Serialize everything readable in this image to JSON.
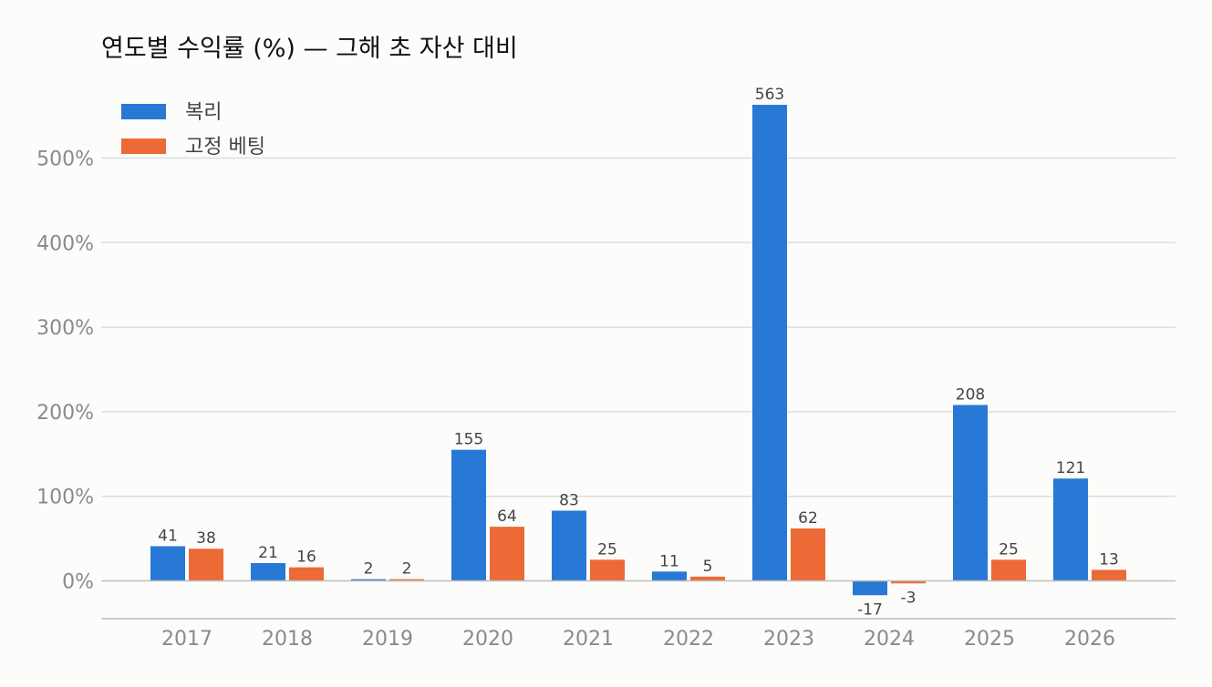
{
  "chart_data": {
    "type": "bar",
    "title": "연도별 수익률 (%) — 그해 초 자산 대비",
    "xlabel": "",
    "ylabel": "",
    "categories": [
      "2017",
      "2018",
      "2019",
      "2020",
      "2021",
      "2022",
      "2023",
      "2024",
      "2025",
      "2026"
    ],
    "series": [
      {
        "name": "복리",
        "color": "#2878d6",
        "values": [
          41,
          21,
          2,
          155,
          83,
          11,
          563,
          -17,
          208,
          121
        ]
      },
      {
        "name": "고정 베팅",
        "color": "#ec6a35",
        "values": [
          38,
          16,
          2,
          64,
          25,
          5,
          62,
          -3,
          25,
          13
        ]
      }
    ],
    "ylim": [
      -45,
      600
    ],
    "yticks": [
      0,
      100,
      200,
      300,
      400,
      500
    ],
    "ytick_labels": [
      "0%",
      "100%",
      "200%",
      "300%",
      "400%",
      "500%"
    ],
    "grid": true,
    "legend": "top-left",
    "data_labels": true
  }
}
